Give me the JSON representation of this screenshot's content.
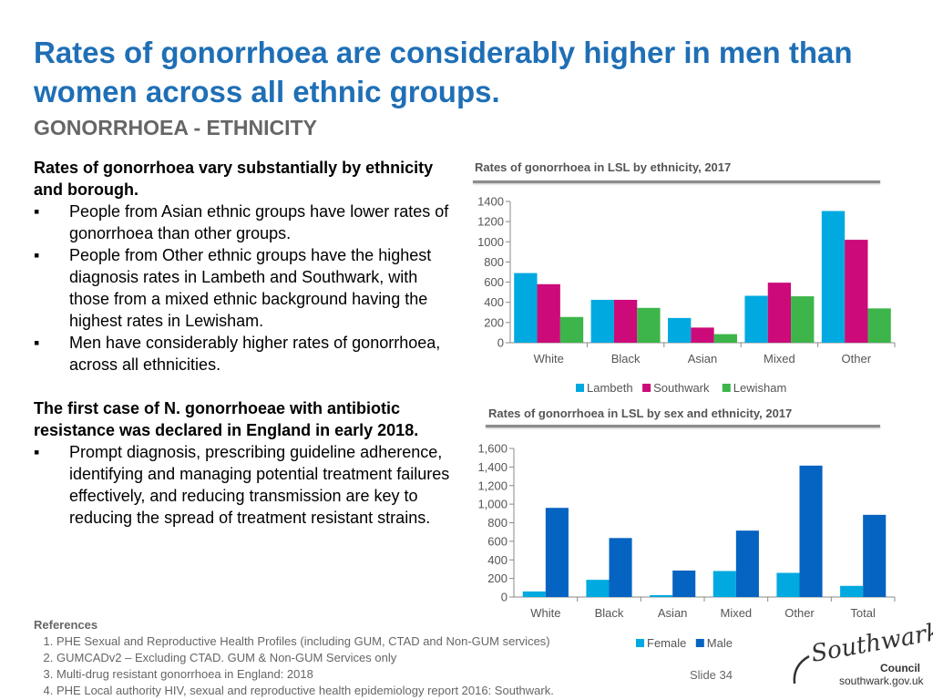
{
  "slide": {
    "title": "Rates of gonorrhoea are considerably higher in men than women across all ethnic groups.",
    "subtitle": "GONORRHOEA - ETHNICITY",
    "number": "Slide 34"
  },
  "text": {
    "lead1": "Rates of gonorrhoea vary substantially by ethnicity and borough.",
    "bullets1": [
      "People from Asian ethnic groups have lower rates of gonorrhoea than other groups.",
      "People from Other ethnic groups have the highest diagnosis rates in Lambeth and Southwark, with those from a mixed ethnic background having the highest rates in Lewisham.",
      "Men have considerably higher rates of gonorrhoea, across all ethnicities."
    ],
    "lead2": "The first case of N. gonorrhoeae with antibiotic resistance was declared in England in early 2018.",
    "bullets2": [
      "Prompt diagnosis, prescribing guideline adherence, identifying and managing potential treatment failures effectively, and reducing transmission are key to reducing the spread of treatment resistant strains."
    ]
  },
  "references": {
    "title": "References",
    "items": [
      "PHE Sexual and Reproductive Health Profiles (including GUM, CTAD and Non-GUM services)",
      "GUMCADv2 – Excluding CTAD. GUM & Non-GUM Services only",
      "Multi-drug resistant gonorrhoea in England: 2018",
      "PHE Local authority HIV, sexual and reproductive health epidemiology report 2016: Southwark."
    ]
  },
  "logo": {
    "name": "Southwark",
    "council": "Council",
    "url": "southwark.gov.uk"
  },
  "chart_data": [
    {
      "type": "bar",
      "title": "Rates of gonorrhoea in LSL by ethnicity, 2017",
      "categories": [
        "White",
        "Black",
        "Asian",
        "Mixed",
        "Other"
      ],
      "series": [
        {
          "name": "Lambeth",
          "values": [
            690,
            425,
            245,
            465,
            1305
          ],
          "color": "#00A9E0"
        },
        {
          "name": "Southwark",
          "values": [
            580,
            425,
            150,
            595,
            1020
          ],
          "color": "#CC0A7A"
        },
        {
          "name": "Lewisham",
          "values": [
            255,
            345,
            85,
            460,
            340
          ],
          "color": "#3DB54A"
        }
      ],
      "ylim": [
        0,
        1400
      ],
      "yticks": [
        "0",
        "200",
        "400",
        "600",
        "800",
        "1000",
        "1200",
        "1400"
      ],
      "legend": "bottom",
      "grid": false
    },
    {
      "type": "bar",
      "title": "Rates of gonorrhoea in LSL by sex and ethnicity, 2017",
      "categories": [
        "White",
        "Black",
        "Asian",
        "Mixed",
        "Other",
        "Total"
      ],
      "series": [
        {
          "name": "Female",
          "values": [
            60,
            185,
            20,
            280,
            260,
            120
          ],
          "color": "#00A9E0"
        },
        {
          "name": "Male",
          "values": [
            960,
            635,
            285,
            715,
            1415,
            885
          ],
          "color": "#0563C1"
        }
      ],
      "ylim": [
        0,
        1600
      ],
      "yticks": [
        "0",
        "200",
        "400",
        "600",
        "800",
        "1,000",
        "1,200",
        "1,400",
        "1,600"
      ],
      "legend": "bottom",
      "grid": false
    }
  ]
}
